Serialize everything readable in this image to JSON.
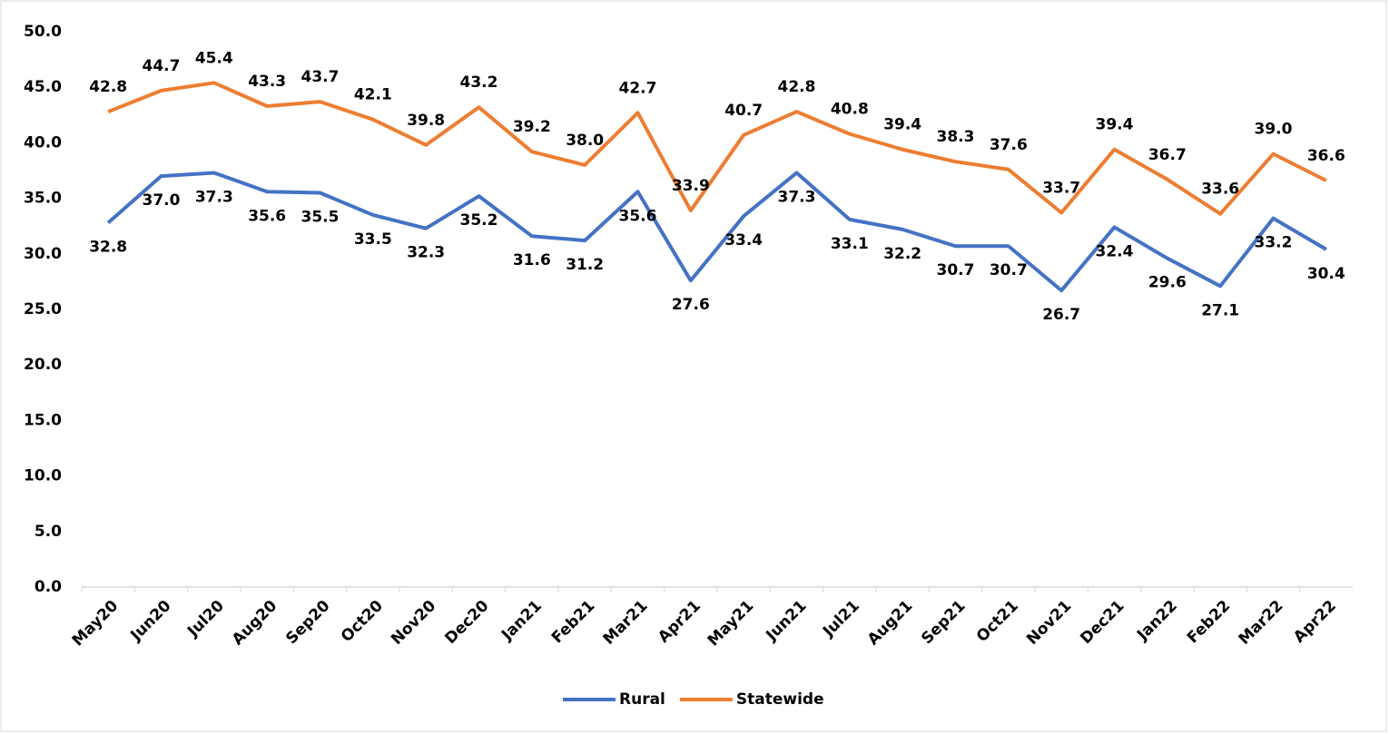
{
  "chart_data": {
    "type": "line",
    "categories": [
      "May20",
      "Jun20",
      "Jul20",
      "Aug20",
      "Sep20",
      "Oct20",
      "Nov20",
      "Dec20",
      "Jan21",
      "Feb21",
      "Mar21",
      "Apr21",
      "May21",
      "Jun21",
      "Jul21",
      "Aug21",
      "Sep21",
      "Oct21",
      "Nov21",
      "Dec21",
      "Jan22",
      "Feb22",
      "Mar22",
      "Apr22"
    ],
    "series": [
      {
        "name": "Rural",
        "color": "#4472c4",
        "values": [
          32.8,
          37.0,
          37.3,
          35.6,
          35.5,
          33.5,
          32.3,
          35.2,
          31.6,
          31.2,
          35.6,
          27.6,
          33.4,
          37.3,
          33.1,
          32.2,
          30.7,
          30.7,
          26.7,
          32.4,
          29.6,
          27.1,
          33.2,
          30.4
        ],
        "value_labels": [
          "32.8",
          "37.0",
          "37.3",
          "35.6",
          "35.5",
          "33.5",
          "32.3",
          "35.2",
          "31.6",
          "31.2",
          "35.6",
          "27.6",
          "33.4",
          "37.3",
          "33.1",
          "32.2",
          "30.7",
          "30.7",
          "26.7",
          "32.4",
          "29.6",
          "27.1",
          "33.2",
          "30.4"
        ]
      },
      {
        "name": "Statewide",
        "color": "#ed7d31",
        "values": [
          42.8,
          44.7,
          45.4,
          43.3,
          43.7,
          42.1,
          39.8,
          43.2,
          39.2,
          38.0,
          42.7,
          33.9,
          40.7,
          42.8,
          40.8,
          39.4,
          38.3,
          37.6,
          33.7,
          39.4,
          36.7,
          33.6,
          39.0,
          36.6
        ],
        "value_labels": [
          "42.8",
          "44.7",
          "45.4",
          "43.3",
          "43.7",
          "42.1",
          "39.8",
          "43.2",
          "39.2",
          "38.0",
          "42.7",
          "33.9",
          "40.7",
          "42.8",
          "40.8",
          "39.4",
          "38.3",
          "37.6",
          "33.7",
          "39.4",
          "36.7",
          "33.6",
          "39.0",
          "36.6"
        ]
      }
    ],
    "ylim": [
      0,
      50
    ],
    "yticks": [
      {
        "value": 0,
        "label": "0.0"
      },
      {
        "value": 5,
        "label": "5.0"
      },
      {
        "value": 10,
        "label": "10.0"
      },
      {
        "value": 15,
        "label": "15.0"
      },
      {
        "value": 20,
        "label": "20.0"
      },
      {
        "value": 25,
        "label": "25.0"
      },
      {
        "value": 30,
        "label": "30.0"
      },
      {
        "value": 35,
        "label": "35.0"
      },
      {
        "value": 40,
        "label": "40.0"
      },
      {
        "value": 45,
        "label": "45.0"
      },
      {
        "value": 50,
        "label": "50.0"
      }
    ],
    "grid": false,
    "legend": "bottom"
  }
}
